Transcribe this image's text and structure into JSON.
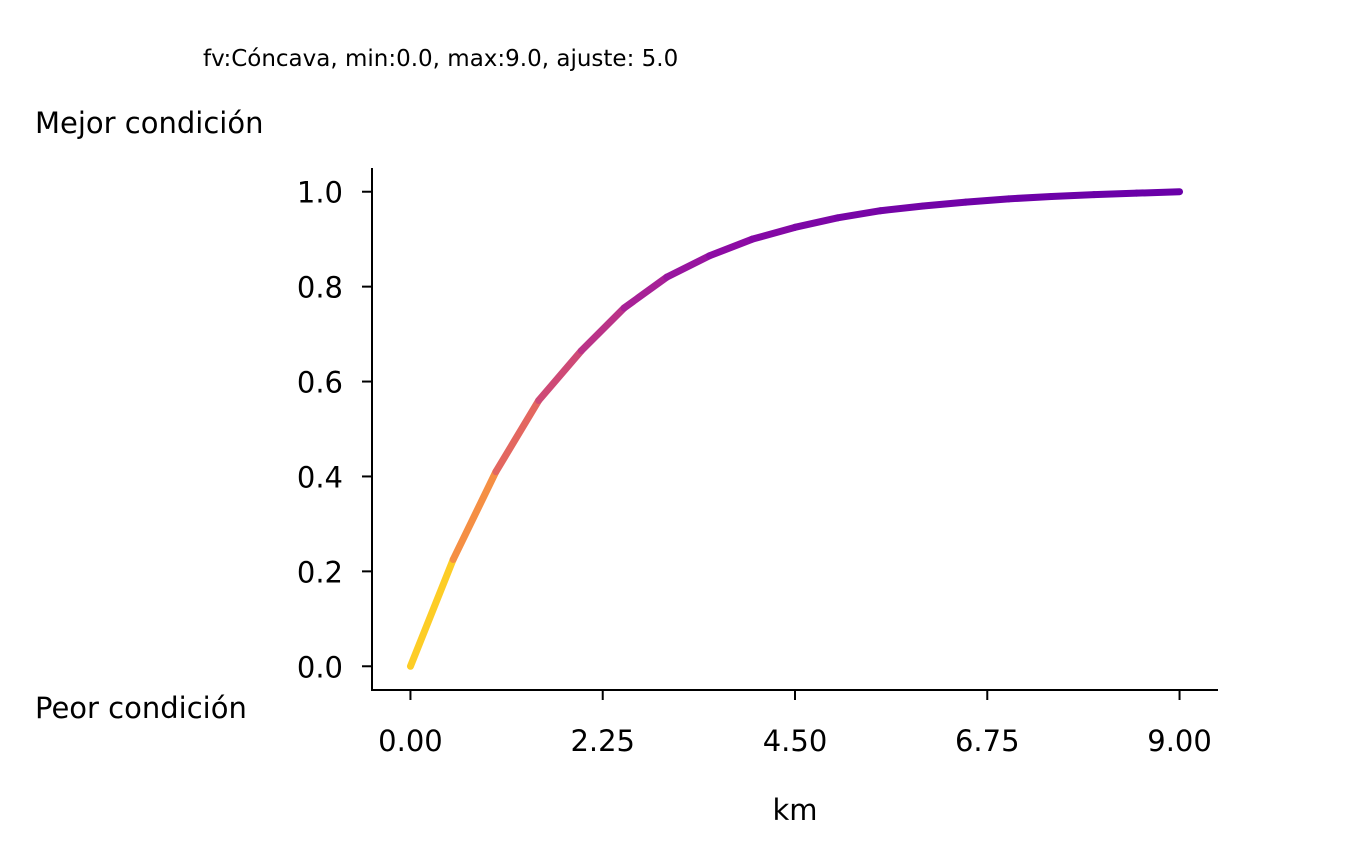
{
  "chart_data": {
    "type": "line",
    "title": "fv:Cóncava, min:0.0, max:9.0, ajuste: 5.0",
    "xlabel": "km",
    "ylabel_top": "Mejor condición",
    "ylabel_bottom": "Peor condición",
    "xlim": [
      -0.45,
      9.45
    ],
    "ylim": [
      -0.05,
      1.05
    ],
    "xticks": [
      0,
      2.25,
      4.5,
      6.75,
      9
    ],
    "xtick_labels": [
      "0.00",
      "2.25",
      "4.50",
      "6.75",
      "9.00"
    ],
    "yticks": [
      0,
      0.2,
      0.4,
      0.6,
      0.8,
      1
    ],
    "ytick_labels": [
      "0.0",
      "0.2",
      "0.4",
      "0.6",
      "0.8",
      "1.0"
    ],
    "grid": false,
    "colormap": "plasma",
    "series": [
      {
        "x": [
          0,
          0.5,
          1,
          1.5,
          2,
          2.5,
          3,
          3.5,
          4,
          4.5,
          5,
          5.5,
          6,
          6.5,
          7,
          7.5,
          8,
          8.5,
          9
        ],
        "values": [
          0.0,
          0.225,
          0.41,
          0.56,
          0.665,
          0.755,
          0.82,
          0.865,
          0.9,
          0.925,
          0.945,
          0.96,
          0.97,
          0.978,
          0.985,
          0.99,
          0.994,
          0.997,
          1.0
        ]
      }
    ],
    "color_stops": [
      "#fde725",
      "#fdca26",
      "#fba238",
      "#f07f4f",
      "#e16462",
      "#cc4778",
      "#b12a90",
      "#8f0da4",
      "#6a00a8"
    ]
  }
}
